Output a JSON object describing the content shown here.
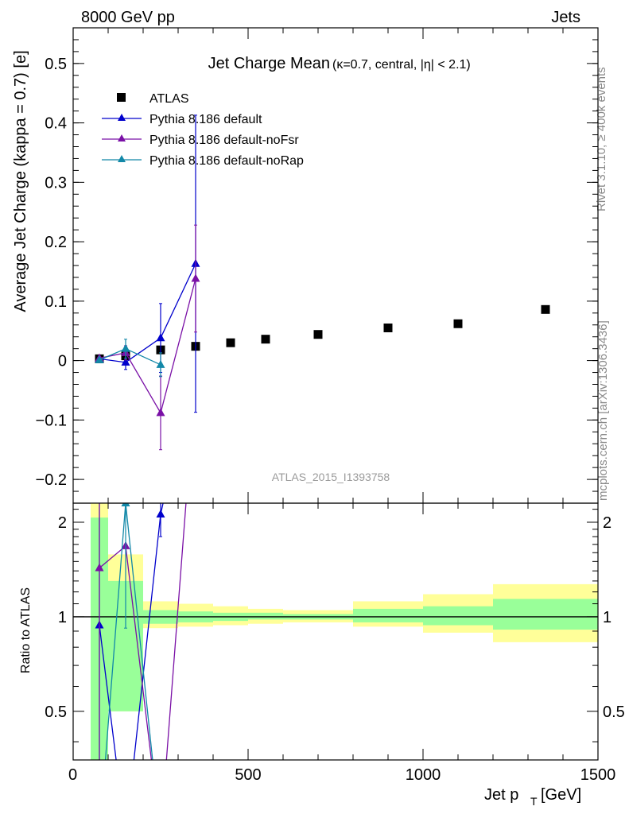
{
  "header": {
    "left": "8000 GeV pp",
    "right": "Jets"
  },
  "side_labels": {
    "rivet": "Rivet 3.1.10, ≥ 400k events",
    "mcplots": "mcplots.cern.ch [arXiv:1306.3436]"
  },
  "chart_data": [
    {
      "type": "scatter",
      "panel": "main",
      "title_main": "Jet Charge Mean",
      "title_sub": "(κ=0.7, central, |η| < 2.1)",
      "watermark": "ATLAS_2015_I1393758",
      "ylabel": "Average Jet Charge (kappa = 0.7) [e]",
      "xlim": [
        0,
        1500
      ],
      "ylim": [
        -0.24,
        0.56
      ],
      "yticks": [
        -0.2,
        -0.1,
        0,
        0.1,
        0.2,
        0.3,
        0.4,
        0.5
      ],
      "ytick_labels": [
        "−0.2",
        "−0.1",
        "0",
        "0.1",
        "0.2",
        "0.3",
        "0.4",
        "0.5"
      ],
      "legend_position": "top-left",
      "series": [
        {
          "name": "ATLAS",
          "marker": "square",
          "color": "#000000",
          "x": [
            75,
            150,
            250,
            350,
            450,
            550,
            700,
            900,
            1100,
            1350
          ],
          "y": [
            0.003,
            0.008,
            0.018,
            0.024,
            0.03,
            0.036,
            0.044,
            0.055,
            0.062,
            0.086
          ]
        },
        {
          "name": "Pythia 8.186 default",
          "marker": "triangle",
          "color": "#0000cc",
          "x": [
            75,
            150,
            250,
            350
          ],
          "y": [
            0.003,
            -0.003,
            0.038,
            0.163
          ],
          "err": [
            0.002,
            0.012,
            0.058,
            0.25
          ]
        },
        {
          "name": "Pythia 8.186 default-noFsr",
          "marker": "triangle",
          "color": "#7a10a6",
          "x": [
            75,
            150,
            250,
            350
          ],
          "y": [
            0.004,
            0.013,
            -0.088,
            0.138
          ],
          "err": [
            0.002,
            0.012,
            0.062,
            0.09
          ]
        },
        {
          "name": "Pythia 8.186 default-noRap",
          "marker": "triangle",
          "color": "#1288a8",
          "x": [
            75,
            150,
            250
          ],
          "y": [
            0.001,
            0.02,
            -0.007
          ],
          "err": [
            0.002,
            0.016,
            0.02
          ]
        }
      ]
    },
    {
      "type": "line",
      "panel": "ratio",
      "ylabel": "Ratio to ATLAS",
      "xlabel": "Jet p_T [GeV]",
      "xlabel_main": "Jet p",
      "xlabel_sub": "T",
      "xlabel_unit": "[GeV]",
      "xlim": [
        0,
        1500
      ],
      "ylim": [
        0.35,
        2.3
      ],
      "yscale": "log",
      "yticks": [
        0.5,
        1,
        2
      ],
      "ytick_labels": [
        "0.5",
        "1",
        "2"
      ],
      "xticks": [
        0,
        500,
        1000,
        1500
      ],
      "xtick_labels": [
        "0",
        "500",
        "1000",
        "1500"
      ],
      "bands": [
        {
          "x0": 50,
          "x1": 100,
          "in_lo": 0.3,
          "in_hi": 2.07,
          "out_lo": 0.3,
          "out_hi": 2.4
        },
        {
          "x0": 100,
          "x1": 200,
          "in_lo": 0.5,
          "in_hi": 1.3,
          "out_lo": 0.5,
          "out_hi": 1.58
        },
        {
          "x0": 200,
          "x1": 300,
          "in_lo": 0.95,
          "in_hi": 1.05,
          "out_lo": 0.92,
          "out_hi": 1.12
        },
        {
          "x0": 300,
          "x1": 400,
          "in_lo": 0.96,
          "in_hi": 1.04,
          "out_lo": 0.93,
          "out_hi": 1.1
        },
        {
          "x0": 400,
          "x1": 500,
          "in_lo": 0.97,
          "in_hi": 1.03,
          "out_lo": 0.94,
          "out_hi": 1.08
        },
        {
          "x0": 500,
          "x1": 600,
          "in_lo": 0.98,
          "in_hi": 1.03,
          "out_lo": 0.95,
          "out_hi": 1.06
        },
        {
          "x0": 600,
          "x1": 800,
          "in_lo": 0.98,
          "in_hi": 1.02,
          "out_lo": 0.96,
          "out_hi": 1.05
        },
        {
          "x0": 800,
          "x1": 1000,
          "in_lo": 0.96,
          "in_hi": 1.06,
          "out_lo": 0.93,
          "out_hi": 1.12
        },
        {
          "x0": 1000,
          "x1": 1200,
          "in_lo": 0.94,
          "in_hi": 1.08,
          "out_lo": 0.89,
          "out_hi": 1.18
        },
        {
          "x0": 1200,
          "x1": 1500,
          "in_lo": 0.91,
          "in_hi": 1.14,
          "out_lo": 0.83,
          "out_hi": 1.27
        }
      ],
      "series": [
        {
          "name": "Pythia 8.186 default",
          "color": "#0000cc",
          "x": [
            75,
            150,
            250,
            350
          ],
          "y": [
            0.94,
            0.2,
            2.12,
            6.8
          ],
          "err_lo": [
            0.3,
            0.0,
            1.8,
            0.0
          ],
          "err_hi": [
            2.6,
            0.0,
            2.6,
            0.0
          ]
        },
        {
          "name": "Pythia 8.186 default-noFsr",
          "color": "#7a10a6",
          "x": [
            75,
            150,
            250,
            350
          ],
          "y": [
            1.43,
            1.68,
            0.2,
            5.8
          ],
          "err_lo": [
            0.3,
            0.0,
            0.0,
            0.0
          ],
          "err_hi": [
            2.3,
            0.0,
            0.0,
            0.0
          ]
        },
        {
          "name": "Pythia 8.186 default-noRap",
          "color": "#1288a8",
          "x": [
            75,
            150,
            250
          ],
          "y": [
            0.2,
            2.3,
            0.2
          ],
          "err_lo": [
            0.0,
            0.92,
            0.0
          ],
          "err_hi": [
            0.0,
            2.3,
            0.0
          ]
        }
      ]
    }
  ]
}
